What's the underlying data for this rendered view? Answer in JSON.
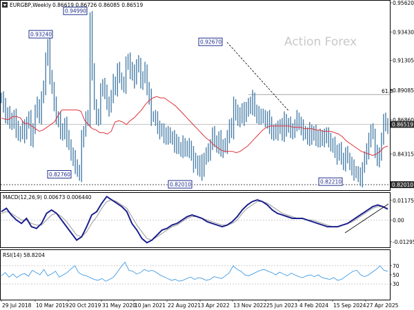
{
  "chart_data": [
    {
      "type": "candlestick",
      "title": "EURGBP,Weekly",
      "ohlc_label": "0.86619 0.86726 0.86085 0.86519",
      "watermark": "Action Forex",
      "ylim": [
        0.81755,
        0.9562
      ],
      "y_ticks": [
        0.9562,
        0.9343,
        0.91305,
        0.89085,
        0.8686,
        0.84315,
        0.8209
      ],
      "y_tick_labels": [
        "0.95620",
        "0.93430",
        "0.91305",
        "0.89085",
        "0.86860",
        "0.84315",
        "0.82090"
      ],
      "current_price": 0.86519,
      "current_price_label": "0.86519",
      "price_badge_color": "#303030",
      "fib_level": {
        "value": 0.88755,
        "label": "61.8"
      },
      "support_level": {
        "value": 0.8201,
        "label": "0.82010"
      },
      "ma_color": "#e0303a",
      "price_color": "#4a7fa8",
      "close_series": [
        0.885,
        0.879,
        0.872,
        0.874,
        0.866,
        0.868,
        0.872,
        0.862,
        0.857,
        0.86,
        0.863,
        0.858,
        0.867,
        0.87,
        0.855,
        0.862,
        0.875,
        0.88,
        0.872,
        0.885,
        0.892,
        0.915,
        0.924,
        0.902,
        0.892,
        0.88,
        0.871,
        0.87,
        0.858,
        0.86,
        0.866,
        0.855,
        0.85,
        0.843,
        0.84,
        0.835,
        0.83,
        0.828,
        0.855,
        0.86,
        0.87,
        0.869,
        0.945,
        0.905,
        0.88,
        0.87,
        0.872,
        0.89,
        0.895,
        0.889,
        0.882,
        0.878,
        0.886,
        0.897,
        0.893,
        0.906,
        0.9,
        0.896,
        0.895,
        0.91,
        0.914,
        0.904,
        0.906,
        0.899,
        0.909,
        0.911,
        0.898,
        0.9,
        0.906,
        0.892,
        0.886,
        0.871,
        0.871,
        0.869,
        0.864,
        0.861,
        0.86,
        0.856,
        0.859,
        0.857,
        0.855,
        0.856,
        0.85,
        0.852,
        0.847,
        0.846,
        0.851,
        0.848,
        0.845,
        0.849,
        0.844,
        0.836,
        0.838,
        0.832,
        0.837,
        0.83,
        0.84,
        0.843,
        0.845,
        0.85,
        0.858,
        0.853,
        0.85,
        0.855,
        0.845,
        0.85,
        0.85,
        0.855,
        0.865,
        0.86,
        0.88,
        0.875,
        0.868,
        0.872,
        0.877,
        0.871,
        0.876,
        0.881,
        0.879,
        0.885,
        0.875,
        0.871,
        0.873,
        0.872,
        0.87,
        0.868,
        0.871,
        0.865,
        0.858,
        0.861,
        0.86,
        0.862,
        0.865,
        0.858,
        0.869,
        0.863,
        0.865,
        0.86,
        0.862,
        0.864,
        0.87,
        0.866,
        0.863,
        0.86,
        0.858,
        0.855,
        0.861,
        0.857,
        0.859,
        0.854,
        0.857,
        0.855,
        0.853,
        0.858,
        0.857,
        0.855,
        0.849,
        0.85,
        0.846,
        0.842,
        0.846,
        0.84,
        0.837,
        0.843,
        0.84,
        0.836,
        0.833,
        0.83,
        0.829,
        0.827,
        0.825,
        0.833,
        0.84,
        0.845,
        0.855,
        0.86,
        0.858,
        0.845,
        0.84,
        0.842,
        0.855,
        0.868,
        0.866,
        0.865
      ],
      "ma_series": [
        0.87,
        0.869,
        0.869,
        0.871,
        0.871,
        0.87,
        0.866,
        0.866,
        0.864,
        0.862,
        0.86,
        0.861,
        0.863,
        0.865,
        0.867,
        0.872,
        0.876,
        0.876,
        0.876,
        0.876,
        0.876,
        0.875,
        0.868,
        0.865,
        0.862,
        0.861,
        0.859,
        0.859,
        0.858,
        0.86,
        0.867,
        0.868,
        0.867,
        0.865,
        0.868,
        0.87,
        0.873,
        0.876,
        0.88,
        0.883,
        0.885,
        0.886,
        0.885,
        0.885,
        0.883,
        0.881,
        0.879,
        0.876,
        0.873,
        0.87,
        0.867,
        0.864,
        0.861,
        0.858,
        0.855,
        0.853,
        0.85,
        0.848,
        0.846,
        0.845,
        0.845,
        0.845,
        0.844,
        0.845,
        0.847,
        0.849,
        0.852,
        0.855,
        0.858,
        0.861,
        0.863,
        0.864,
        0.864,
        0.864,
        0.864,
        0.864,
        0.864,
        0.863,
        0.863,
        0.863,
        0.862,
        0.862,
        0.862,
        0.861,
        0.861,
        0.86,
        0.86,
        0.86,
        0.859,
        0.858,
        0.856,
        0.853,
        0.851,
        0.849,
        0.847,
        0.845,
        0.844,
        0.843,
        0.842,
        0.843,
        0.845,
        0.848,
        0.849
      ]
    },
    {
      "type": "line",
      "title": "MACD(12,26,9) 0.00673 0.006440",
      "ylim": [
        -0.01545,
        0.01495
      ],
      "y_ticks": [
        0.011757,
        0.0,
        -0.012951
      ],
      "y_tick_labels": [
        "0.011757",
        "0.00",
        "-0.012951"
      ],
      "series": [
        {
          "name": "MACD",
          "color": "#1a1f8c",
          "values": [
            0.005,
            0.007,
            0.003,
            0.0,
            -0.002,
            0.001,
            -0.004,
            -0.005,
            -0.002,
            0.004,
            0.006,
            0.004,
            0.0,
            -0.004,
            -0.008,
            -0.012,
            -0.01,
            -0.004,
            0.003,
            0.005,
            0.01,
            0.014,
            0.012,
            0.01,
            0.008,
            0.005,
            -0.002,
            -0.006,
            -0.011,
            -0.0135,
            -0.012,
            -0.009,
            -0.006,
            -0.005,
            -0.003,
            -0.002,
            0.0,
            0.002,
            0.003,
            0.002,
            0.001,
            -0.001,
            -0.002,
            -0.003,
            -0.004,
            -0.003,
            -0.001,
            0.002,
            0.006,
            0.009,
            0.011,
            0.012,
            0.011,
            0.009,
            0.006,
            0.004,
            0.003,
            0.002,
            0.001,
            0.001,
            0.001,
            0.0,
            -0.001,
            -0.002,
            -0.003,
            -0.004,
            -0.004,
            -0.004,
            -0.003,
            -0.002,
            0.0,
            0.002,
            0.004,
            0.006,
            0.008,
            0.009,
            0.008,
            0.0065
          ]
        },
        {
          "name": "Signal",
          "color": "#9a9a9a",
          "values": [
            0.004,
            0.005,
            0.004,
            0.002,
            0.0,
            0.0,
            -0.002,
            -0.003,
            -0.003,
            0.0,
            0.003,
            0.004,
            0.002,
            -0.001,
            -0.005,
            -0.009,
            -0.01,
            -0.007,
            -0.002,
            0.002,
            0.007,
            0.011,
            0.012,
            0.011,
            0.009,
            0.007,
            0.002,
            -0.003,
            -0.007,
            -0.011,
            -0.012,
            -0.01,
            -0.008,
            -0.006,
            -0.004,
            -0.003,
            -0.001,
            0.001,
            0.002,
            0.002,
            0.001,
            0.0,
            -0.001,
            -0.002,
            -0.003,
            -0.003,
            -0.002,
            0.0,
            0.004,
            0.007,
            0.009,
            0.011,
            0.011,
            0.01,
            0.008,
            0.006,
            0.004,
            0.003,
            0.002,
            0.001,
            0.001,
            0.0,
            0.0,
            -0.001,
            -0.002,
            -0.003,
            -0.004,
            -0.004,
            -0.003,
            -0.002,
            -0.001,
            0.001,
            0.003,
            0.005,
            0.007,
            0.008,
            0.008,
            0.0071
          ]
        }
      ]
    },
    {
      "type": "line",
      "title": "RSI(14) 58.8204",
      "ylim": [
        0,
        100
      ],
      "y_ticks": [
        70,
        50,
        30
      ],
      "y_tick_labels": [
        "70",
        "50",
        "30"
      ],
      "series": [
        {
          "name": "RSI",
          "color": "#2a8ee0",
          "values": [
            48,
            55,
            45,
            52,
            44,
            50,
            53,
            47,
            60,
            55,
            50,
            62,
            48,
            52,
            58,
            45,
            50,
            55,
            63,
            70,
            55,
            50,
            48,
            44,
            40,
            38,
            42,
            36,
            40,
            45,
            56,
            68,
            78,
            60,
            58,
            52,
            55,
            62,
            58,
            60,
            56,
            50,
            46,
            42,
            38,
            40,
            36,
            38,
            42,
            45,
            40,
            44,
            42,
            38,
            40,
            46,
            44,
            42,
            48,
            55,
            70,
            62,
            58,
            50,
            48,
            52,
            56,
            60,
            62,
            58,
            55,
            50,
            56,
            52,
            48,
            54,
            50,
            46,
            44,
            48,
            50,
            46,
            50,
            44,
            42,
            40,
            44,
            38,
            40,
            46,
            52,
            58,
            60,
            50,
            46,
            50,
            56,
            62,
            70,
            60,
            58
          ]
        }
      ]
    }
  ],
  "price_labels": [
    {
      "label": "0.94990",
      "value": 0.9499
    },
    {
      "label": "0.93240",
      "value": 0.9324
    },
    {
      "label": "0.92670",
      "value": 0.9267
    },
    {
      "label": "0.82760",
      "value": 0.8276
    },
    {
      "label": "0.82010",
      "value": 0.8201
    },
    {
      "label": "0.82210",
      "value": 0.8221
    }
  ],
  "x_ticks": [
    "29 Jul 2018",
    "10 Mar 2019",
    "20 Oct 2019",
    "31 May 2020",
    "10 Jan 2021",
    "22 Aug 2021",
    "3 Apr 2022",
    "13 Nov 2022",
    "25 Jun 2023",
    "4 Feb 2024",
    "15 Sep 2024",
    "27 Apr 2025"
  ]
}
